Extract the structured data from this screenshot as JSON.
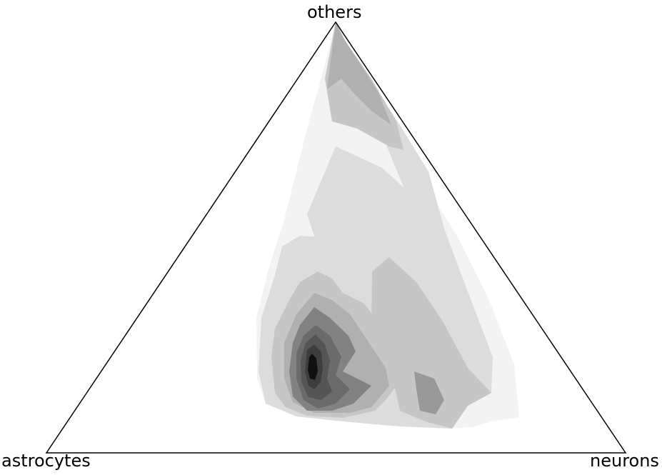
{
  "chart_data": {
    "type": "ternary-density",
    "vertices": {
      "top": "others",
      "left": "astrocytes",
      "right": "neurons"
    },
    "fill": "filled density contours, greyscale",
    "levels": [
      {
        "level": 1,
        "color": "#f3f3f3"
      },
      {
        "level": 2,
        "color": "#dcdcdc"
      },
      {
        "level": 3,
        "color": "#c6c6c6"
      },
      {
        "level": 4,
        "color": "#b0b0b0"
      },
      {
        "level": 5,
        "color": "#999999"
      },
      {
        "level": 6,
        "color": "#828282"
      },
      {
        "level": 7,
        "color": "#6b6b6b"
      },
      {
        "level": 8,
        "color": "#555555"
      },
      {
        "level": 9,
        "color": "#3e3e3e"
      },
      {
        "level": 10,
        "color": "#272727"
      },
      {
        "level": 11,
        "color": "#101010"
      }
    ],
    "axes_frame_color": "#000000"
  }
}
